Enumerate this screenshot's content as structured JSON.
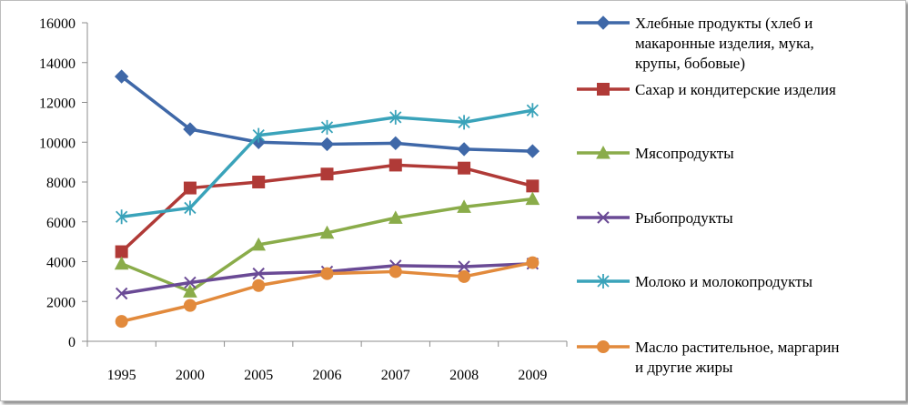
{
  "chart_data": {
    "type": "line",
    "categories": [
      "1995",
      "2000",
      "2005",
      "2006",
      "2007",
      "2008",
      "2009"
    ],
    "ylim": [
      0,
      16000
    ],
    "yticks": [
      0,
      2000,
      4000,
      6000,
      8000,
      10000,
      12000,
      14000,
      16000
    ],
    "ytick_labels": [
      "0",
      "2000",
      "4000",
      "6000",
      "8000",
      "10000",
      "12000",
      "14000",
      "16000"
    ],
    "grid": false,
    "legend_position": "right",
    "series": [
      {
        "name": "Хлебные продукты (хлеб и макаронные изделия, мука, крупы, бобовые)",
        "legend_lines": [
          "Хлебные продукты (хлеб и",
          "макаронные изделия, мука,",
          "крупы, бобовые)"
        ],
        "color": "#3F68A8",
        "marker": "diamond",
        "values": [
          13300,
          10650,
          10000,
          9900,
          9950,
          9650,
          9550
        ]
      },
      {
        "name": "Сахар и кондитерские изделия",
        "legend_lines": [
          "Сахар и кондитерские изделия"
        ],
        "color": "#B03A37",
        "marker": "square",
        "values": [
          4500,
          7700,
          8000,
          8400,
          8850,
          8700,
          7800
        ]
      },
      {
        "name": "Мясопродукты",
        "legend_lines": [
          "Мясопродукты"
        ],
        "color": "#8AAC4A",
        "marker": "triangle",
        "values": [
          3900,
          2500,
          4850,
          5450,
          6200,
          6750,
          7150
        ]
      },
      {
        "name": "Рыбопродукты",
        "legend_lines": [
          "Рыбопродукты"
        ],
        "color": "#6A4A95",
        "marker": "x",
        "values": [
          2400,
          2950,
          3400,
          3500,
          3800,
          3750,
          3900
        ]
      },
      {
        "name": "Молоко и молокопродукты",
        "legend_lines": [
          "Молоко и молокопродукты"
        ],
        "color": "#3AA3BA",
        "marker": "star",
        "values": [
          6250,
          6700,
          10350,
          10750,
          11250,
          11000,
          11600
        ]
      },
      {
        "name": "Масло растительное, маргарин и другие жиры",
        "legend_lines": [
          "Масло растительное, маргарин",
          "и другие жиры"
        ],
        "color": "#E28A3C",
        "marker": "circle",
        "values": [
          1000,
          1800,
          2800,
          3400,
          3500,
          3250,
          3950
        ]
      }
    ]
  }
}
